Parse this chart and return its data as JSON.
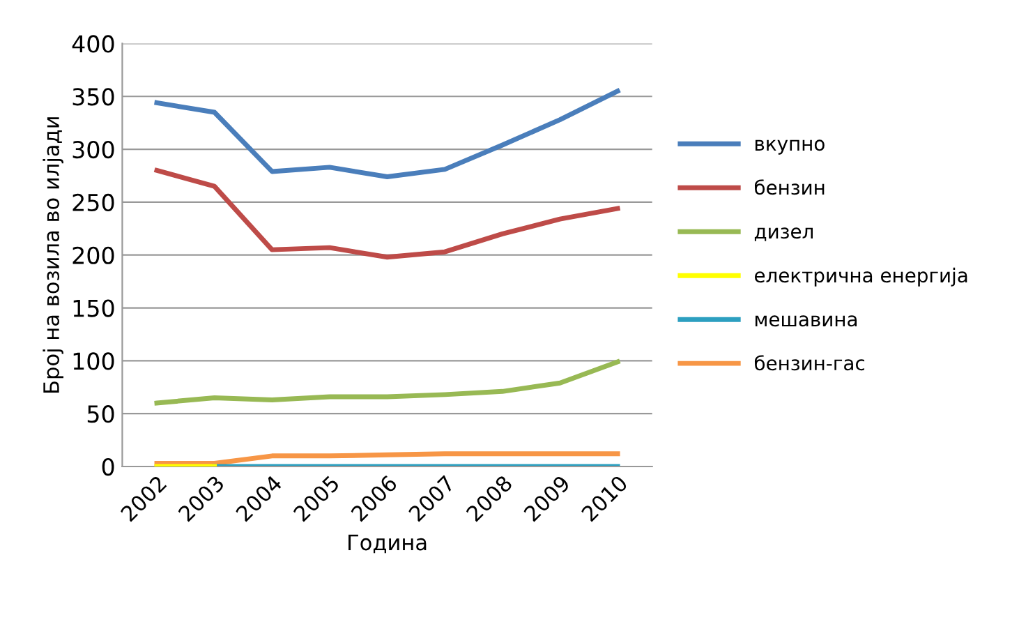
{
  "chart_data": {
    "type": "line",
    "xlabel": "Година",
    "ylabel": "Број на возила во илјади",
    "categories": [
      "2002",
      "2003",
      "2004",
      "2005",
      "2006",
      "2007",
      "2008",
      "2009",
      "2010"
    ],
    "series": [
      {
        "name": "вкупно",
        "color": "#4a7ebb",
        "values": [
          344,
          335,
          279,
          283,
          274,
          281,
          304,
          328,
          355
        ]
      },
      {
        "name": "бензин",
        "color": "#be4b48",
        "values": [
          280,
          265,
          205,
          207,
          198,
          203,
          220,
          234,
          244
        ]
      },
      {
        "name": "дизел",
        "color": "#98b954",
        "values": [
          60,
          65,
          63,
          66,
          66,
          68,
          71,
          79,
          99
        ]
      },
      {
        "name": "електрична енергија",
        "color": "#ffff00",
        "values": [
          0,
          0,
          null,
          null,
          null,
          null,
          null,
          null,
          null
        ]
      },
      {
        "name": "мешавина",
        "color": "#2c9fc0",
        "values": [
          null,
          0,
          0,
          0,
          0,
          0,
          0,
          0,
          0
        ]
      },
      {
        "name": "бензин-гас",
        "color": "#f79646",
        "values": [
          3,
          3,
          10,
          10,
          11,
          12,
          12,
          12,
          12
        ]
      }
    ],
    "ylim": [
      0,
      400
    ],
    "yticks": [
      0,
      50,
      100,
      150,
      200,
      250,
      300,
      350,
      400
    ],
    "grid": "y",
    "legend": "right",
    "marker": "none",
    "line_style": "solid"
  }
}
